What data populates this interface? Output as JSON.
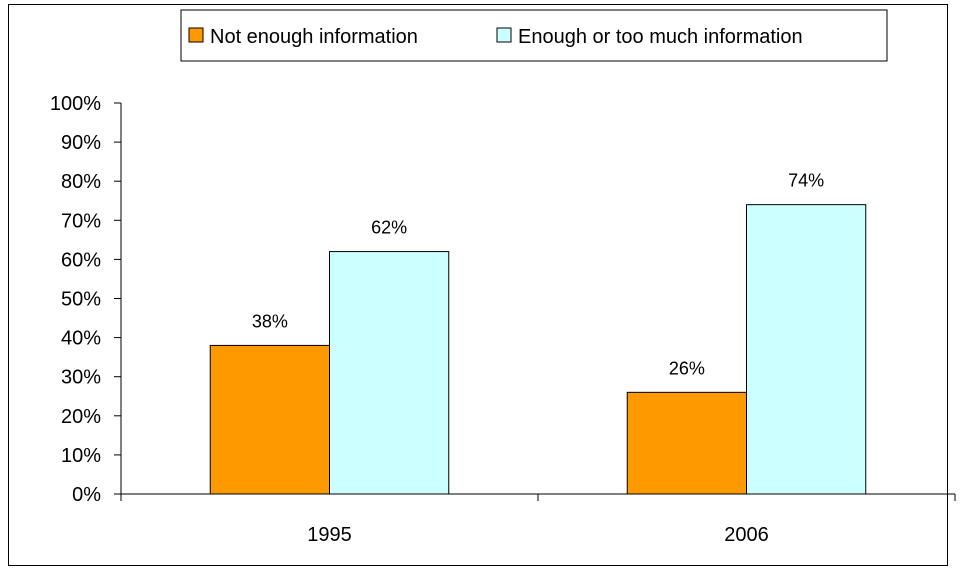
{
  "chart_data": {
    "type": "bar",
    "title": "",
    "xlabel": "",
    "ylabel": "",
    "categories": [
      "1995",
      "2006"
    ],
    "series": [
      {
        "name": "Not enough information",
        "values": [
          38,
          26
        ],
        "color": "#FF9900"
      },
      {
        "name": "Enough or too much information",
        "values": [
          62,
          74
        ],
        "color": "#CCFFFF"
      }
    ],
    "y_ticks": [
      "0%",
      "10%",
      "20%",
      "30%",
      "40%",
      "50%",
      "60%",
      "70%",
      "80%",
      "90%",
      "100%"
    ],
    "data_labels": [
      [
        "38%",
        "26%"
      ],
      [
        "62%",
        "74%"
      ]
    ],
    "ylim": [
      0,
      100
    ],
    "grid": false,
    "legend": "top"
  }
}
